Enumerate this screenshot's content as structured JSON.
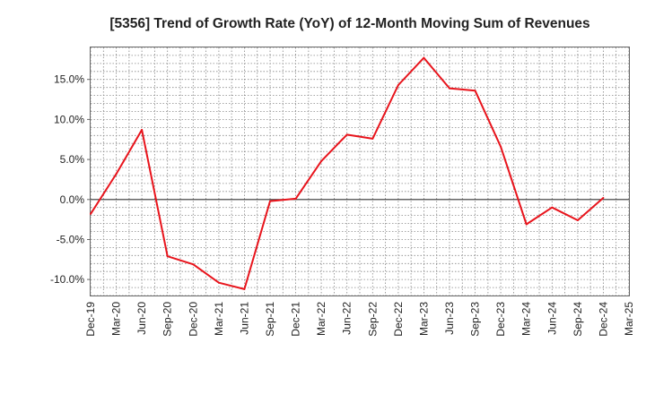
{
  "chart_data": {
    "type": "line",
    "title": "[5356]  Trend of Growth Rate (YoY) of 12-Month Moving Sum of Revenues",
    "xlabel": "",
    "ylabel": "",
    "x_ticks": [
      "Dec-19",
      "Mar-20",
      "Jun-20",
      "Sep-20",
      "Dec-20",
      "Mar-21",
      "Jun-21",
      "Sep-21",
      "Dec-21",
      "Mar-22",
      "Jun-22",
      "Sep-22",
      "Dec-22",
      "Mar-23",
      "Jun-23",
      "Sep-23",
      "Dec-23",
      "Mar-24",
      "Jun-24",
      "Sep-24",
      "Dec-24",
      "Mar-25"
    ],
    "y_ticks": [
      {
        "value": 15,
        "label": "15.0%"
      },
      {
        "value": 10,
        "label": "10.0%"
      },
      {
        "value": 5,
        "label": "5.0%"
      },
      {
        "value": 0,
        "label": "0.0%"
      },
      {
        "value": -5,
        "label": "-5.0%"
      },
      {
        "value": -10,
        "label": "-10.0%"
      }
    ],
    "ylim": [
      -12,
      19
    ],
    "grid": true,
    "series": [
      {
        "color": "#e8141c",
        "points": [
          {
            "x": "Dec-19",
            "y": -1.8
          },
          {
            "x": "Mar-20",
            "y": 3.2
          },
          {
            "x": "Jun-20",
            "y": 8.7
          },
          {
            "x": "Sep-20",
            "y": -7.1
          },
          {
            "x": "Dec-20",
            "y": -8.1
          },
          {
            "x": "Mar-21",
            "y": -10.4
          },
          {
            "x": "Jun-21",
            "y": -11.2
          },
          {
            "x": "Sep-21",
            "y": -0.2
          },
          {
            "x": "Dec-21",
            "y": 0.1
          },
          {
            "x": "Mar-22",
            "y": 4.8
          },
          {
            "x": "Jun-22",
            "y": 8.1
          },
          {
            "x": "Sep-22",
            "y": 7.6
          },
          {
            "x": "Dec-22",
            "y": 14.3
          },
          {
            "x": "Mar-23",
            "y": 17.7
          },
          {
            "x": "Jun-23",
            "y": 13.9
          },
          {
            "x": "Sep-23",
            "y": 13.6
          },
          {
            "x": "Dec-23",
            "y": 6.6
          },
          {
            "x": "Mar-24",
            "y": -3.1
          },
          {
            "x": "Jun-24",
            "y": -1.0
          },
          {
            "x": "Sep-24",
            "y": -2.6
          },
          {
            "x": "Dec-24",
            "y": 0.2
          }
        ]
      }
    ]
  }
}
